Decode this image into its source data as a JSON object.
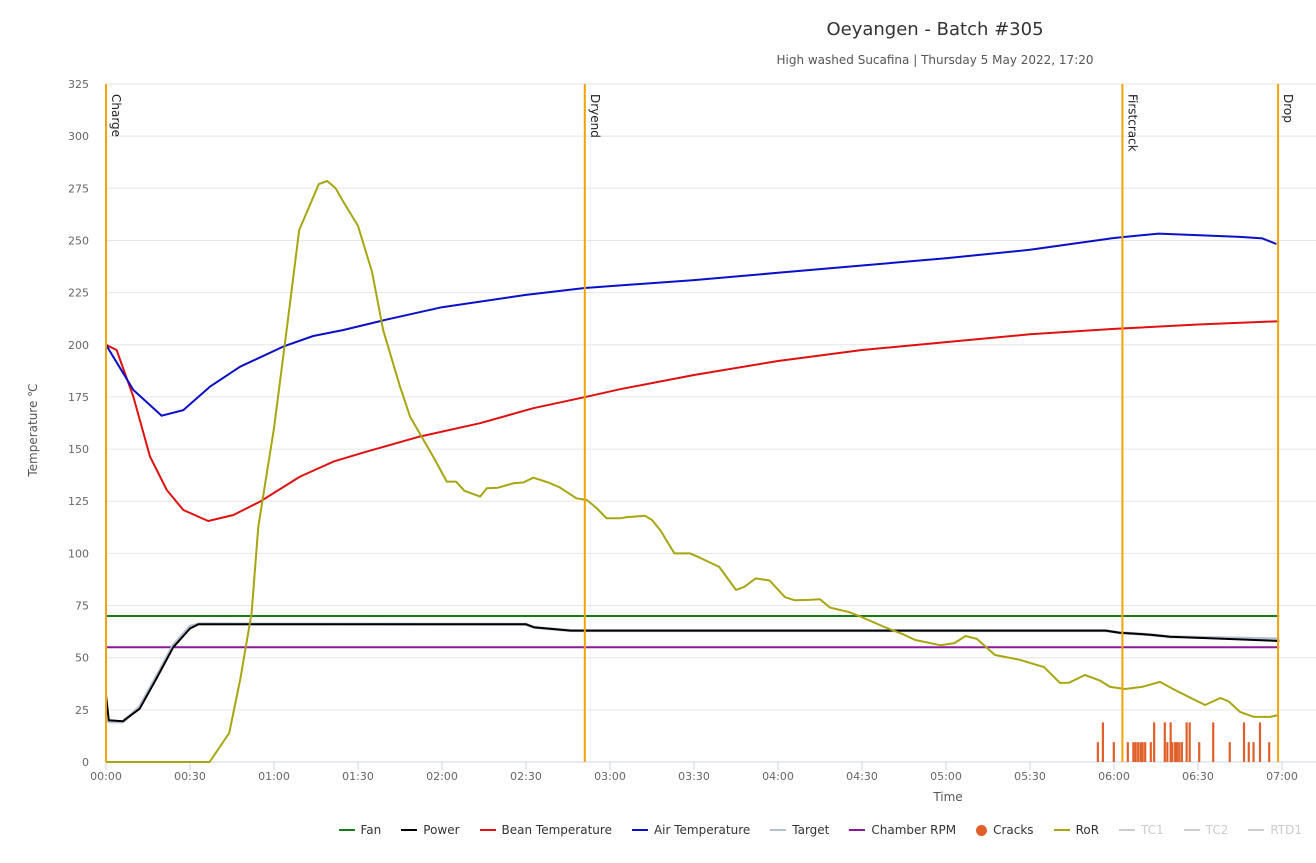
{
  "chart_data": {
    "type": "line",
    "title": "Oeyangen - Batch #305",
    "subtitle": "High washed Sucafina | Thursday 5 May 2022, 17:20",
    "xlabel": "Time",
    "ylabel": "Temperature ℃",
    "xlim_seconds": [
      0,
      420
    ],
    "ylim": [
      0,
      325
    ],
    "x_ticks": [
      "00:00",
      "00:30",
      "01:00",
      "01:30",
      "02:00",
      "02:30",
      "03:00",
      "03:30",
      "04:00",
      "04:30",
      "05:00",
      "05:30",
      "06:00",
      "06:30",
      "07:00"
    ],
    "y_ticks": [
      0,
      25,
      50,
      75,
      100,
      125,
      150,
      175,
      200,
      225,
      250,
      275,
      300,
      325
    ],
    "grid": true,
    "legend_position": "bottom-right",
    "events": [
      {
        "label": "Charge",
        "t": 0
      },
      {
        "label": "Dryend",
        "t": 171
      },
      {
        "label": "Firstcrack",
        "t": 363
      },
      {
        "label": "Drop",
        "t": 418.6
      }
    ],
    "event_color": "#f0a30a",
    "series": [
      {
        "name": "Fan",
        "color": "#1a7a1a",
        "points": [
          [
            0,
            70
          ],
          [
            419,
            70
          ]
        ]
      },
      {
        "name": "Chamber RPM",
        "color": "#8b1a9b",
        "points": [
          [
            0,
            55
          ],
          [
            419,
            55
          ]
        ]
      },
      {
        "name": "Target",
        "color": "#b3c0d4",
        "points": [
          [
            0,
            20
          ],
          [
            1.4,
            19.2
          ],
          [
            6,
            19.2
          ],
          [
            12,
            26.5
          ],
          [
            18,
            41
          ],
          [
            24,
            56
          ],
          [
            30,
            65
          ],
          [
            33,
            66.2
          ],
          [
            150,
            66
          ],
          [
            153,
            64.5
          ],
          [
            166,
            63
          ],
          [
            357,
            63
          ],
          [
            362,
            62
          ],
          [
            373,
            61
          ],
          [
            380,
            60
          ],
          [
            400,
            59.5
          ],
          [
            419,
            59
          ]
        ]
      },
      {
        "name": "Power",
        "color": "#000000",
        "points": [
          [
            0,
            32
          ],
          [
            1,
            20
          ],
          [
            6,
            19.5
          ],
          [
            12,
            25.5
          ],
          [
            18,
            40
          ],
          [
            24,
            55
          ],
          [
            30,
            64
          ],
          [
            33,
            66
          ],
          [
            150,
            66
          ],
          [
            153,
            64.5
          ],
          [
            166,
            63
          ],
          [
            357,
            63
          ],
          [
            362,
            62
          ],
          [
            373,
            61
          ],
          [
            380,
            60
          ],
          [
            400,
            59
          ],
          [
            419,
            58
          ]
        ]
      },
      {
        "name": "Bean Temperature",
        "color": "#e01010",
        "points": [
          [
            0,
            200
          ],
          [
            3.8,
            197.5
          ],
          [
            9.8,
            175
          ],
          [
            15.7,
            146.4
          ],
          [
            21.7,
            130.4
          ],
          [
            27.6,
            120.8
          ],
          [
            36.5,
            115.5
          ],
          [
            45.5,
            118.4
          ],
          [
            55,
            124.8
          ],
          [
            69.3,
            136.8
          ],
          [
            81.2,
            144
          ],
          [
            93.1,
            148.8
          ],
          [
            112,
            156
          ],
          [
            133.6,
            162.4
          ],
          [
            152.6,
            169.6
          ],
          [
            171.7,
            175.1
          ],
          [
            183.6,
            178.7
          ],
          [
            210,
            185.5
          ],
          [
            240,
            192.2
          ],
          [
            270,
            197.5
          ],
          [
            300,
            201.3
          ],
          [
            330,
            205
          ],
          [
            360,
            207.6
          ],
          [
            390,
            209.7
          ],
          [
            419,
            211.3
          ]
        ]
      },
      {
        "name": "Air Temperature",
        "color": "#0a10c8",
        "points": [
          [
            0,
            200
          ],
          [
            9.8,
            178.3
          ],
          [
            19.9,
            166
          ],
          [
            27.6,
            168.7
          ],
          [
            37.1,
            179.9
          ],
          [
            47.9,
            189.5
          ],
          [
            63.3,
            199.1
          ],
          [
            74,
            204.2
          ],
          [
            84.8,
            207.1
          ],
          [
            100,
            212
          ],
          [
            120,
            218
          ],
          [
            150,
            223.9
          ],
          [
            171,
            227.2
          ],
          [
            210,
            231
          ],
          [
            240,
            234.5
          ],
          [
            270,
            238
          ],
          [
            300,
            241.5
          ],
          [
            330,
            245.5
          ],
          [
            360,
            251.2
          ],
          [
            376,
            253.3
          ],
          [
            405,
            251.7
          ],
          [
            413,
            251
          ],
          [
            418,
            248.3
          ]
        ]
      },
      {
        "name": "RoR",
        "color": "#a8a510",
        "points": [
          [
            0,
            0
          ],
          [
            37,
            0
          ],
          [
            44,
            13.9
          ],
          [
            48,
            40
          ],
          [
            52,
            71.4
          ],
          [
            54.4,
            112.8
          ],
          [
            60,
            160
          ],
          [
            64.5,
            207
          ],
          [
            69,
            255
          ],
          [
            76,
            277
          ],
          [
            79,
            278.5
          ],
          [
            82,
            275
          ],
          [
            85,
            268
          ],
          [
            90,
            257
          ],
          [
            95,
            235
          ],
          [
            99,
            207
          ],
          [
            105,
            180
          ],
          [
            108.6,
            165.5
          ],
          [
            112.7,
            156
          ],
          [
            117,
            146
          ],
          [
            121.7,
            134.4
          ],
          [
            125,
            134.4
          ],
          [
            128,
            130
          ],
          [
            133.6,
            127.2
          ],
          [
            136,
            131.2
          ],
          [
            140,
            131.5
          ],
          [
            145.5,
            133.6
          ],
          [
            149,
            134
          ],
          [
            152.6,
            136.3
          ],
          [
            158,
            134
          ],
          [
            162,
            131.7
          ],
          [
            168,
            126.4
          ],
          [
            171.7,
            125.6
          ],
          [
            175,
            122
          ],
          [
            178.8,
            116.8
          ],
          [
            183.6,
            116.8
          ],
          [
            186,
            117.4
          ],
          [
            192.5,
            118
          ],
          [
            195,
            116
          ],
          [
            198,
            111
          ],
          [
            203,
            100
          ],
          [
            208.6,
            100
          ],
          [
            212,
            98
          ],
          [
            219,
            93.5
          ],
          [
            225,
            82.5
          ],
          [
            228,
            84
          ],
          [
            232,
            88
          ],
          [
            237,
            87
          ],
          [
            242.5,
            79
          ],
          [
            246,
            77.5
          ],
          [
            251,
            77.7
          ],
          [
            255,
            78
          ],
          [
            258.6,
            74
          ],
          [
            265,
            72
          ],
          [
            269,
            70
          ],
          [
            278,
            64.7
          ],
          [
            285,
            61
          ],
          [
            289,
            58.5
          ],
          [
            298,
            56
          ],
          [
            303,
            57
          ],
          [
            307,
            60.4
          ],
          [
            311,
            59
          ],
          [
            317.5,
            51.3
          ],
          [
            326.4,
            49
          ],
          [
            330,
            47.5
          ],
          [
            335,
            45.5
          ],
          [
            340.7,
            37.9
          ],
          [
            344,
            38
          ],
          [
            349.6,
            41.7
          ],
          [
            355,
            39
          ],
          [
            358.6,
            36
          ],
          [
            364,
            35
          ],
          [
            370,
            36
          ],
          [
            376.4,
            38.4
          ],
          [
            381.8,
            34.5
          ],
          [
            387,
            31
          ],
          [
            392.5,
            27.3
          ],
          [
            398,
            30.7
          ],
          [
            401,
            29
          ],
          [
            405,
            24
          ],
          [
            410,
            21.6
          ],
          [
            415.7,
            21.6
          ],
          [
            418.6,
            22.5
          ]
        ]
      }
    ],
    "cracks": {
      "name": "Cracks",
      "color": "#e0602a",
      "times": [
        354.2,
        356,
        359.9,
        364.9,
        366.9,
        367.7,
        368.6,
        369.5,
        370.2,
        371.1,
        373.1,
        374.3,
        378.1,
        379,
        380.2,
        380.8,
        381.8,
        382.5,
        383.3,
        384.2,
        385.9,
        387,
        390.4,
        395.4,
        401.3,
        406.4,
        408.1,
        409.8,
        412.1,
        415.4
      ],
      "values": [
        9.5,
        19,
        9.5,
        9.5,
        9.5,
        9.5,
        9.5,
        9.5,
        9.5,
        9.5,
        9.5,
        19,
        19,
        9.5,
        19,
        9.5,
        9.5,
        9.5,
        9.5,
        9.5,
        19,
        19,
        9.5,
        19,
        9.5,
        19,
        9.5,
        9.5,
        19,
        9.5
      ]
    },
    "legend": [
      {
        "name": "Fan",
        "color": "#1a7a1a",
        "kind": "line",
        "visible": true
      },
      {
        "name": "Power",
        "color": "#000000",
        "kind": "line",
        "visible": true
      },
      {
        "name": "Bean Temperature",
        "color": "#e01010",
        "kind": "line",
        "visible": true
      },
      {
        "name": "Air Temperature",
        "color": "#0a10c8",
        "kind": "line",
        "visible": true
      },
      {
        "name": "Target",
        "color": "#b3c0d4",
        "kind": "line",
        "visible": true
      },
      {
        "name": "Chamber RPM",
        "color": "#8b1a9b",
        "kind": "line",
        "visible": true
      },
      {
        "name": "Cracks",
        "color": "#e0602a",
        "kind": "dot",
        "visible": true
      },
      {
        "name": "RoR",
        "color": "#a8a510",
        "kind": "line",
        "visible": true
      },
      {
        "name": "TC1",
        "color": "#cccccc",
        "kind": "line",
        "visible": false
      },
      {
        "name": "TC2",
        "color": "#cccccc",
        "kind": "line",
        "visible": false
      },
      {
        "name": "RTD1",
        "color": "#cccccc",
        "kind": "line",
        "visible": false
      }
    ]
  }
}
